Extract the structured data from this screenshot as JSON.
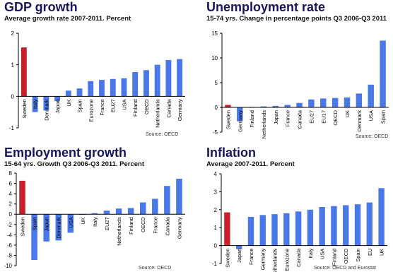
{
  "colors": {
    "highlight": "#c8202a",
    "bar": "#4a78e8",
    "title": "#16165c",
    "axis": "#000000"
  },
  "chart_data": [
    {
      "type": "bar",
      "title": "GDP growth",
      "subtitle": "Average growth rate 2007-2011. Percent",
      "source": "Source: OECD",
      "ylim": [
        -1,
        2
      ],
      "yticks": [
        -1,
        0,
        1,
        2
      ],
      "tick_labels": [
        "-1",
        "0",
        "1",
        "2"
      ],
      "categories": [
        "Sweden",
        "Italy",
        "Denmark",
        "Japan",
        "UK",
        "Spain",
        "Eurozone",
        "France",
        "EU27",
        "USA",
        "Finland",
        "OECD",
        "Netherlands",
        "Canada",
        "Germany"
      ],
      "values": [
        1.55,
        -0.5,
        -0.45,
        -0.15,
        0.18,
        0.25,
        0.48,
        0.52,
        0.55,
        0.57,
        0.77,
        0.83,
        1.0,
        1.15,
        1.18
      ],
      "highlight": "Sweden"
    },
    {
      "type": "bar",
      "title": "Unemployment rate",
      "subtitle": "15-74 yrs. Change in percentage points Q3 2006-Q3 2011",
      "source": "Source: OECD",
      "ylim": [
        -5,
        15
      ],
      "yticks": [
        -5,
        0,
        5,
        10,
        15
      ],
      "tick_labels": [
        "-5",
        "0",
        "5",
        "10",
        "15"
      ],
      "categories": [
        "Sweden",
        "Germany",
        "Finland",
        "Netherlands",
        "Japan",
        "France",
        "Canada",
        "EU27",
        "EU17",
        "OECD",
        "UK",
        "Denmark",
        "USA",
        "Spain"
      ],
      "values": [
        0.5,
        -2.8,
        0.1,
        0.2,
        0.3,
        0.5,
        0.9,
        1.6,
        1.8,
        1.9,
        2.0,
        2.8,
        4.6,
        13.5
      ],
      "highlight": "Sweden"
    },
    {
      "type": "bar",
      "title": "Employment growth",
      "subtitle": "15-64 yrs. Growth Q3 2006-Q3 2011. Percent",
      "source": "Source: OECD",
      "ylim": [
        -10,
        8
      ],
      "yticks": [
        -10,
        -8,
        -6,
        -4,
        -2,
        0,
        2,
        4,
        6,
        8
      ],
      "tick_labels": [
        "-10",
        "-8",
        "-6",
        "-4",
        "-2",
        "0",
        "2",
        "4",
        "6",
        "8"
      ],
      "categories": [
        "Sweden",
        "Spain",
        "Japan",
        "Denmark",
        "USA",
        "UK",
        "Italy",
        "EU27",
        "Netherlands",
        "Finland",
        "OECD",
        "France",
        "Canada",
        "Germany"
      ],
      "values": [
        6.5,
        -8.9,
        -5.3,
        -5.1,
        -3.6,
        0.0,
        0.2,
        0.7,
        1.1,
        1.2,
        2.3,
        3.0,
        5.5,
        6.9
      ],
      "highlight": "Sweden"
    },
    {
      "type": "bar",
      "title": "Inflation",
      "subtitle": "Average 2007-2011. Percent",
      "source": "Source: OECD and Eurostat",
      "ylim": [
        -1,
        4
      ],
      "yticks": [
        -1,
        0,
        1,
        2,
        3,
        4
      ],
      "tick_labels": [
        "-1",
        "0",
        "1",
        "2",
        "3",
        "4"
      ],
      "categories": [
        "Sweden",
        "Japan",
        "France",
        "Germany",
        "Netherlands",
        "Eurozone",
        "Canada",
        "Italy",
        "USA",
        "Finland",
        "OECD",
        "Spain",
        "EU",
        "UK"
      ],
      "values": [
        1.85,
        -0.2,
        1.6,
        1.7,
        1.75,
        1.8,
        1.9,
        2.0,
        2.15,
        2.2,
        2.25,
        2.3,
        2.4,
        3.2
      ],
      "highlight": "Sweden"
    }
  ]
}
